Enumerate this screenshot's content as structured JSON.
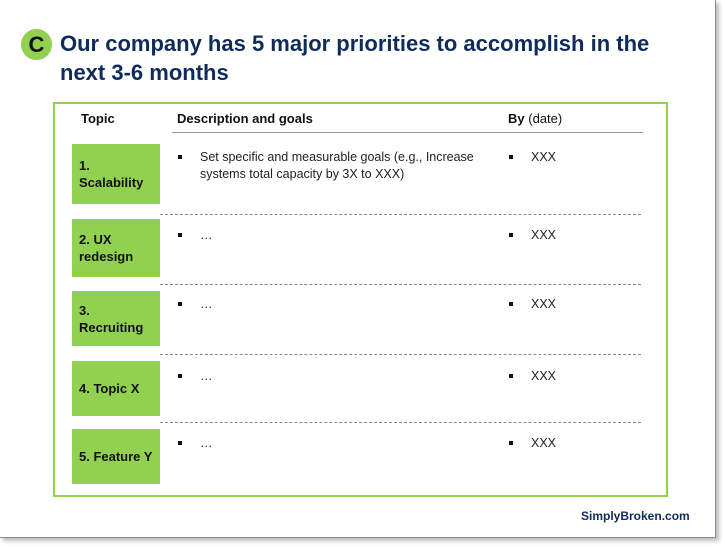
{
  "badge": "C",
  "title": "Our company has 5 major priorities to accomplish in the next 3-6 months",
  "table": {
    "header": {
      "topic": "Topic",
      "description": "Description and goals",
      "by": "By",
      "by_note": "(date)"
    },
    "rows": [
      {
        "topic": "1. Scalability",
        "description": "Set specific and measurable goals (e.g., Increase systems total capacity by 3X to XXX)",
        "by": "XXX"
      },
      {
        "topic": "2. UX redesign",
        "description": "…",
        "by": "XXX"
      },
      {
        "topic": "3. Recruiting",
        "description": "…",
        "by": "XXX"
      },
      {
        "topic": "4. Topic X",
        "description": "…",
        "by": "XXX"
      },
      {
        "topic": "5. Feature Y",
        "description": "…",
        "by": "XXX"
      }
    ]
  },
  "footer": "SimplyBroken.com"
}
